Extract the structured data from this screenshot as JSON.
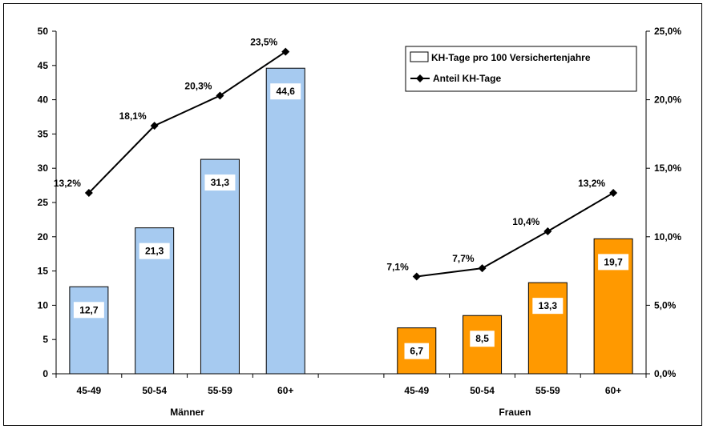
{
  "chart_data": {
    "type": "bar",
    "groups": [
      {
        "label": "Männer",
        "categories": [
          "45-49",
          "50-54",
          "55-59",
          "60+"
        ],
        "color": "#A6CAF0"
      },
      {
        "label": "Frauen",
        "categories": [
          "45-49",
          "50-54",
          "55-59",
          "60+"
        ],
        "color": "#FF9900"
      }
    ],
    "series": [
      {
        "name": "KH-Tage pro 100 Versichertenjahre",
        "type": "bar",
        "axis": "left",
        "values": [
          12.7,
          21.3,
          31.3,
          44.6,
          6.7,
          8.5,
          13.3,
          19.7
        ],
        "labels": [
          "12,7",
          "21,3",
          "31,3",
          "44,6",
          "6,7",
          "8,5",
          "13,3",
          "19,7"
        ]
      },
      {
        "name": "Anteil KH-Tage",
        "type": "line",
        "axis": "right",
        "values": [
          13.2,
          18.1,
          20.3,
          23.5,
          7.1,
          7.7,
          10.4,
          13.2
        ],
        "labels": [
          "13,2%",
          "18,1%",
          "20,3%",
          "23,5%",
          "7,1%",
          "7,7%",
          "10,4%",
          "13,2%"
        ]
      }
    ],
    "y_left": {
      "min": 0,
      "max": 50,
      "step": 5,
      "ticks": [
        "0",
        "5",
        "10",
        "15",
        "20",
        "25",
        "30",
        "35",
        "40",
        "45",
        "50"
      ]
    },
    "y_right": {
      "min": 0,
      "max": 25,
      "step": 5,
      "ticks": [
        "0,0%",
        "5,0%",
        "10,0%",
        "15,0%",
        "20,0%",
        "25,0%"
      ]
    },
    "legend": {
      "placement": "top-right"
    },
    "grid": false
  }
}
